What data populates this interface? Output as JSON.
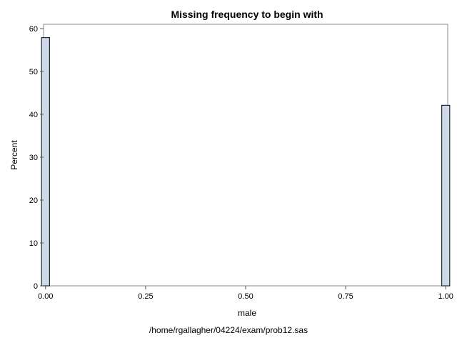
{
  "chart_data": {
    "type": "bar",
    "title": "Missing frequency to begin with",
    "xlabel": "male",
    "ylabel": "Percent",
    "footnote": "/home/rgallagher/04224/exam/prob12.sas",
    "x": [
      0,
      1
    ],
    "values": [
      57.9,
      42.1
    ],
    "xlim": [
      -0.005,
      1.005
    ],
    "ylim": [
      0,
      61
    ],
    "xticks": [
      0,
      0.25,
      0.5,
      0.75,
      1
    ],
    "xtick_labels": [
      "0.00",
      "0.25",
      "0.50",
      "0.75",
      "1.00"
    ],
    "yticks": [
      0,
      10,
      20,
      30,
      40,
      50,
      60
    ],
    "ytick_labels": [
      "0",
      "10",
      "20",
      "30",
      "40",
      "50",
      "60"
    ],
    "bar_width": 0.02,
    "grid": false,
    "legend": "none",
    "bar_fill": "#cfd9e8",
    "bar_stroke": "#1e2a3a"
  }
}
